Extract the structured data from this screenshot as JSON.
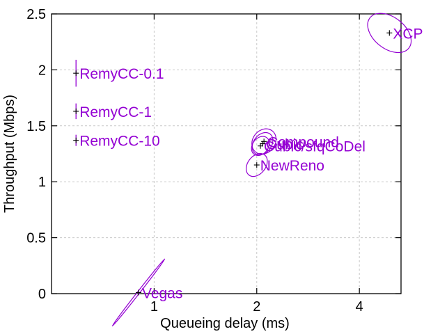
{
  "chart_data": {
    "type": "scatter",
    "xlabel": "Queueing delay (ms)",
    "ylabel": "Throughput (Mbps)",
    "x_scale": "log",
    "xlim": [
      0.5,
      5.3
    ],
    "ylim": [
      0,
      2.5
    ],
    "xticks": [
      1,
      2,
      4
    ],
    "yticks": [
      0,
      0.5,
      1,
      1.5,
      2,
      2.5
    ],
    "xtick_labels": [
      "1",
      "2",
      "4"
    ],
    "ytick_labels": [
      "0",
      "0.5",
      "1",
      "1.5",
      "2",
      "2.5"
    ],
    "grid": true,
    "label_color": "#9400d3",
    "points": [
      {
        "label": "RemyCC-0.1",
        "x": 0.59,
        "y": 1.97,
        "ey": 0.12
      },
      {
        "label": "RemyCC-1",
        "x": 0.59,
        "y": 1.63,
        "ey": 0.07
      },
      {
        "label": "RemyCC-10",
        "x": 0.59,
        "y": 1.37,
        "ey": 0.05
      },
      {
        "label": "XCP",
        "x": 4.9,
        "y": 2.33,
        "ex": 0.55,
        "ey": 0.22
      },
      {
        "label": "Compound",
        "x": 2.1,
        "y": 1.36,
        "ex": 0.2,
        "ey": 0.1
      },
      {
        "label": "Cubic",
        "x": 2.08,
        "y": 1.34,
        "ex": 0.18,
        "ey": 0.08
      },
      {
        "label": "Cubic/sfqCoDel",
        "x": 2.05,
        "y": 1.32,
        "ex": 0.15,
        "ey": 0.07
      },
      {
        "label": "NewReno",
        "x": 2.0,
        "y": 1.15,
        "ex": 0.18,
        "ey": 0.08
      },
      {
        "label": "Vegas",
        "x": 0.9,
        "y": 0.01,
        "ex": 0.3,
        "ey": 0.01
      }
    ]
  }
}
